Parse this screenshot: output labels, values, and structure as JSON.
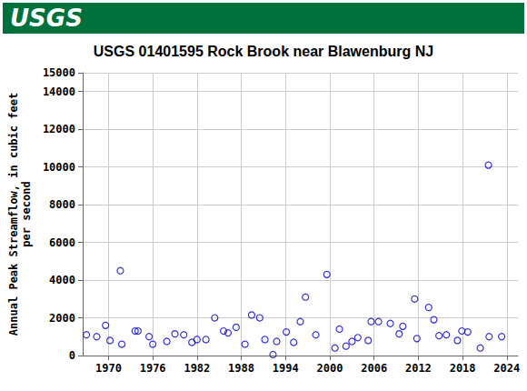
{
  "header": {
    "logo": "USGS"
  },
  "chart_data": {
    "type": "scatter",
    "title": "USGS 01401595 Rock Brook near Blawenburg NJ",
    "ylabel": "Annual Peak Streamflow, in cubic feet\nper second",
    "x": [
      1967.0,
      1968.4,
      1969.6,
      1970.2,
      1971.6,
      1971.8,
      1973.6,
      1974.0,
      1975.5,
      1976.0,
      1977.9,
      1979.0,
      1980.2,
      1981.3,
      1982.0,
      1983.2,
      1984.4,
      1985.6,
      1986.2,
      1987.3,
      1988.5,
      1989.4,
      1990.5,
      1991.2,
      1992.3,
      1992.8,
      1994.1,
      1995.1,
      1996.0,
      1996.7,
      1998.1,
      1999.6,
      2000.7,
      2001.3,
      2002.2,
      2003.0,
      2003.8,
      2005.2,
      2005.6,
      2006.6,
      2008.2,
      2009.4,
      2009.9,
      2011.5,
      2011.8,
      2013.4,
      2014.1,
      2014.8,
      2015.8,
      2017.3,
      2017.9,
      2018.7,
      2020.4,
      2021.5,
      2021.6,
      2023.3
    ],
    "values": [
      1100,
      1000,
      1600,
      800,
      4500,
      600,
      1300,
      1300,
      1000,
      600,
      750,
      1150,
      1100,
      700,
      850,
      850,
      2000,
      1300,
      1200,
      1500,
      600,
      2150,
      2000,
      850,
      50,
      750,
      1250,
      700,
      1800,
      3100,
      1100,
      4300,
      400,
      1400,
      500,
      750,
      950,
      800,
      1800,
      1800,
      1700,
      1150,
      1550,
      3000,
      900,
      2550,
      1900,
      1050,
      1100,
      800,
      1300,
      1250,
      400,
      10100,
      1000,
      1000
    ],
    "color": "#0000cc",
    "marker": "circle",
    "xlim": [
      1966.5,
      2025.5
    ],
    "xticks": [
      1970,
      1976,
      1982,
      1988,
      1994,
      2000,
      2006,
      2012,
      2018,
      2024
    ],
    "ylim": [
      0,
      15000
    ],
    "yticks": [
      0,
      2000,
      4000,
      6000,
      8000,
      10000,
      12000,
      14000
    ],
    "grid": true
  }
}
